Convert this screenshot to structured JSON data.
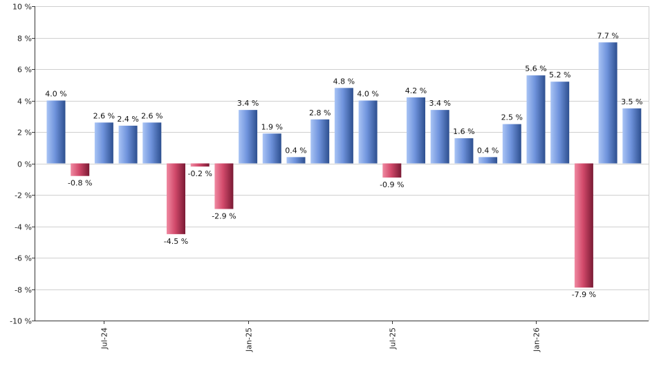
{
  "chart_data": {
    "type": "bar",
    "title": "",
    "xlabel": "",
    "ylabel": "",
    "ylim": [
      -10,
      10
    ],
    "y_ticks": [
      {
        "value": 10,
        "label": "10 %"
      },
      {
        "value": 8,
        "label": "8 %"
      },
      {
        "value": 6,
        "label": "6 %"
      },
      {
        "value": 4,
        "label": "4 %"
      },
      {
        "value": 2,
        "label": "2 %"
      },
      {
        "value": 0,
        "label": "0 %"
      },
      {
        "value": -2,
        "label": "-2 %"
      },
      {
        "value": -4,
        "label": "-4 %"
      },
      {
        "value": -6,
        "label": "-6 %"
      },
      {
        "value": -8,
        "label": "-8 %"
      },
      {
        "value": -10,
        "label": "-10 %"
      }
    ],
    "x_ticks": [
      {
        "index": 2,
        "label": "Jul-24"
      },
      {
        "index": 8,
        "label": "Jan-25"
      },
      {
        "index": 14,
        "label": "Jul-25"
      },
      {
        "index": 20,
        "label": "Jan-26"
      }
    ],
    "values": [
      4.0,
      -0.8,
      2.6,
      2.4,
      2.6,
      -4.5,
      -0.2,
      -2.9,
      3.4,
      1.9,
      0.4,
      2.8,
      4.8,
      4.0,
      -0.9,
      4.2,
      3.4,
      1.6,
      0.4,
      2.5,
      5.6,
      5.2,
      -7.9,
      7.7,
      3.5
    ],
    "labels": [
      "4.0 %",
      "-0.8 %",
      "2.6 %",
      "2.4 %",
      "2.6 %",
      "-4.5 %",
      "-0.2 %",
      "-2.9 %",
      "3.4 %",
      "1.9 %",
      "0.4 %",
      "2.8 %",
      "4.8 %",
      "4.0 %",
      "-0.9 %",
      "4.2 %",
      "3.4 %",
      "1.6 %",
      "0.4 %",
      "2.5 %",
      "5.6 %",
      "5.2 %",
      "-7.9 %",
      "7.7 %",
      "3.5 %"
    ],
    "grid": true,
    "legend": "none",
    "colors": {
      "positive_light": "#a9c4f5",
      "positive_mid": "#6f93dc",
      "positive_dark": "#2d4f8f",
      "negative_light": "#f08aa2",
      "negative_mid": "#d24a6b",
      "negative_dark": "#7a1a34"
    }
  }
}
